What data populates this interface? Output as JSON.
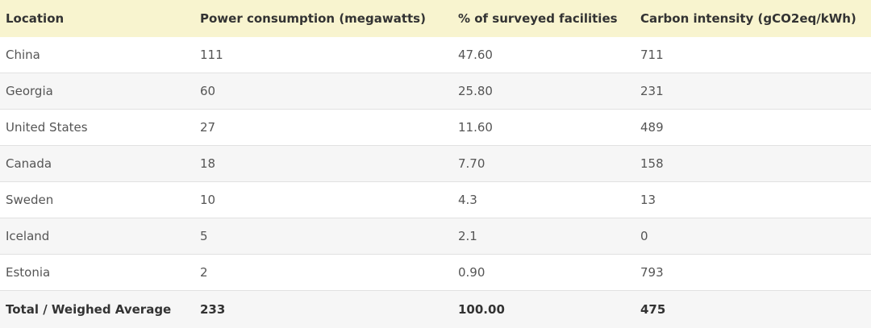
{
  "table": {
    "headers": [
      "Location",
      "Power consumption (megawatts)",
      "% of surveyed facilities",
      "Carbon intensity (gCO2eq/kWh)"
    ],
    "rows": [
      [
        "China",
        "111",
        "47.60",
        "711"
      ],
      [
        "Georgia",
        "60",
        "25.80",
        "231"
      ],
      [
        "United States",
        "27",
        "11.60",
        "489"
      ],
      [
        "Canada",
        "18",
        "7.70",
        "158"
      ],
      [
        "Sweden",
        "10",
        "4.3",
        "13"
      ],
      [
        "Iceland",
        "5",
        "2.1",
        "0"
      ],
      [
        "Estonia",
        "2",
        "0.90",
        "793"
      ]
    ],
    "total": [
      "Total / Weighed Average",
      "233",
      "100.00",
      "475"
    ]
  }
}
